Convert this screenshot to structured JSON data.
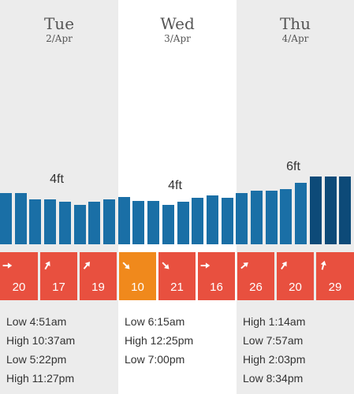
{
  "colors": {
    "column_shade": "#ececec",
    "bar_normal": "#1a6fa6",
    "bar_high": "#0d4a78",
    "wind_normal": "#e8503f",
    "wind_calm": "#f0891c"
  },
  "days": [
    {
      "name": "Tue",
      "date": "2/Apr",
      "wave": "4ft",
      "tides": [
        "Low 4:51am",
        "High 10:37am",
        "Low 5:22pm",
        "High 11:27pm"
      ]
    },
    {
      "name": "Wed",
      "date": "3/Apr",
      "wave": "4ft",
      "tides": [
        "Low 6:15am",
        "High 12:25pm",
        "Low 7:00pm"
      ]
    },
    {
      "name": "Thu",
      "date": "4/Apr",
      "wave": "6ft",
      "tides": [
        "High 1:14am",
        "Low 7:57am",
        "High 2:03pm",
        "Low 8:34pm"
      ]
    }
  ],
  "chart_data": {
    "type": "bar",
    "series": [
      {
        "values": [
          4.0,
          4.0,
          3.5,
          3.5,
          3.3,
          3.1,
          3.3,
          3.5,
          3.7,
          3.4,
          3.4,
          3.1,
          3.3,
          3.6,
          3.8,
          3.6,
          4.0,
          4.2,
          4.2,
          4.3,
          4.8,
          5.3,
          5.3,
          5.3
        ]
      }
    ],
    "ylim": [
      0,
      10
    ]
  },
  "wind": [
    {
      "speed": "20",
      "direction_deg": 90,
      "calm": false
    },
    {
      "speed": "17",
      "direction_deg": 30,
      "calm": false
    },
    {
      "speed": "19",
      "direction_deg": 40,
      "calm": false
    },
    {
      "speed": "10",
      "direction_deg": 135,
      "calm": true
    },
    {
      "speed": "21",
      "direction_deg": 135,
      "calm": false
    },
    {
      "speed": "16",
      "direction_deg": 90,
      "calm": false
    },
    {
      "speed": "26",
      "direction_deg": 50,
      "calm": false
    },
    {
      "speed": "20",
      "direction_deg": 35,
      "calm": false
    },
    {
      "speed": "29",
      "direction_deg": 15,
      "calm": false
    }
  ]
}
